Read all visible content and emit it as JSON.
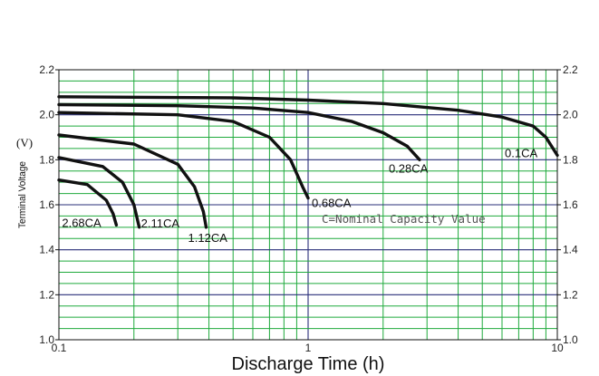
{
  "chart_data": {
    "type": "line",
    "xlabel": "Discharge Time (h)",
    "ylabel": "Terminal Voltage",
    "y_unit": "(V)",
    "x_scale": "log",
    "xlim": [
      0.1,
      10
    ],
    "ylim": [
      1.0,
      2.2
    ],
    "x_tick_labels": [
      "0.1",
      "1",
      "10"
    ],
    "y_tick_labels": [
      "1.0",
      "1.2",
      "1.4",
      "1.6",
      "1.8",
      "2.0",
      "2.2"
    ],
    "y_ticks": [
      1.0,
      1.2,
      1.4,
      1.6,
      1.8,
      2.0,
      2.2
    ],
    "grid": true,
    "annotation": "C=Nominal Capacity Value",
    "series": [
      {
        "name": "0.1CA",
        "x": [
          0.1,
          0.5,
          1,
          2,
          4,
          6,
          8,
          9,
          10
        ],
        "y": [
          2.08,
          2.075,
          2.065,
          2.05,
          2.02,
          1.99,
          1.95,
          1.9,
          1.82
        ]
      },
      {
        "name": "0.28CA",
        "x": [
          0.1,
          0.3,
          0.6,
          1,
          1.5,
          2,
          2.5,
          2.8
        ],
        "y": [
          2.045,
          2.04,
          2.03,
          2.01,
          1.97,
          1.92,
          1.86,
          1.8
        ]
      },
      {
        "name": "0.68CA",
        "x": [
          0.1,
          0.3,
          0.5,
          0.7,
          0.85,
          0.95,
          1.0
        ],
        "y": [
          2.01,
          2.0,
          1.97,
          1.9,
          1.8,
          1.68,
          1.63
        ]
      },
      {
        "name": "1.12CA",
        "x": [
          0.1,
          0.2,
          0.3,
          0.35,
          0.38,
          0.39
        ],
        "y": [
          1.91,
          1.87,
          1.78,
          1.68,
          1.57,
          1.5
        ]
      },
      {
        "name": "2.11CA",
        "x": [
          0.1,
          0.15,
          0.18,
          0.2,
          0.21
        ],
        "y": [
          1.81,
          1.77,
          1.7,
          1.6,
          1.5
        ]
      },
      {
        "name": "2.68CA",
        "x": [
          0.1,
          0.13,
          0.155,
          0.165,
          0.17
        ],
        "y": [
          1.71,
          1.69,
          1.62,
          1.56,
          1.51
        ]
      }
    ]
  }
}
